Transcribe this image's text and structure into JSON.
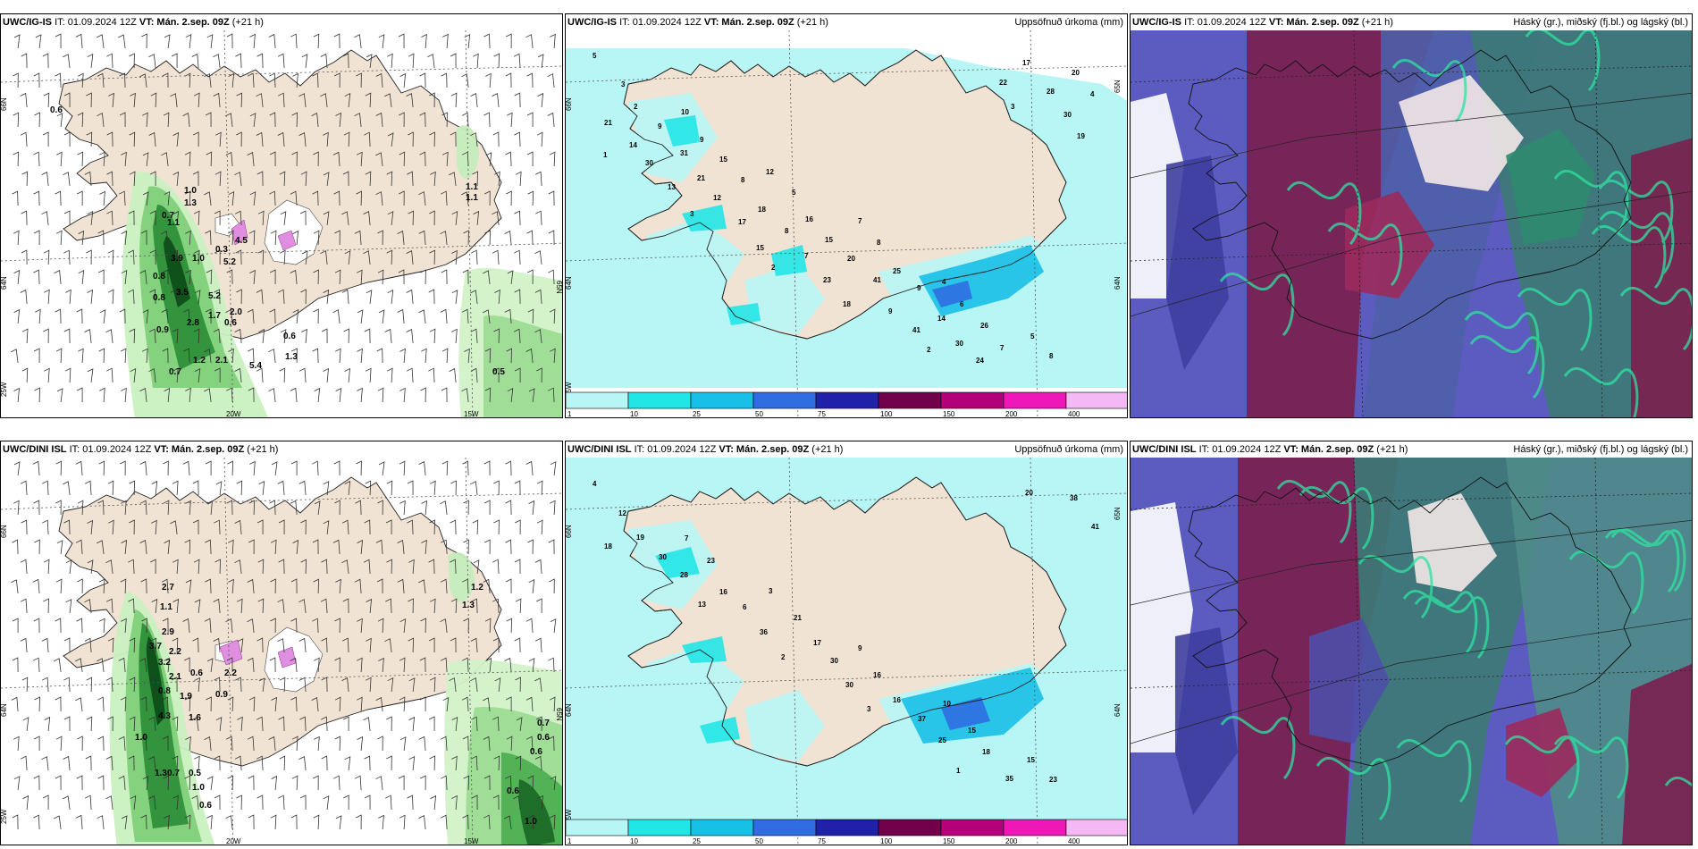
{
  "rows": [
    {
      "model": "UWC/IG-IS",
      "it": "IT: 01.09.2024 12Z",
      "vt_label": "VT:",
      "vt": "Mán. 2.sep. 09Z",
      "lead": "(+21 h)"
    },
    {
      "model": "UWC/DINI ISL",
      "it": "IT: 01.09.2024 12Z",
      "vt_label": "VT:",
      "vt": "Mán. 2.sep. 09Z",
      "lead": "(+21 h)"
    }
  ],
  "panels": {
    "precip_title": "Uppsöfnuð úrkoma (mm)",
    "cloud_title": "Háský (gr.), miðský (fj.bl.) og lágský (bl.)"
  },
  "axis_labels": {
    "lat66": "66N",
    "lat64": "64N",
    "lat25w": "25W",
    "lon20w": "20W",
    "lon15w": "15W",
    "lat65": "65N"
  },
  "colorbar": {
    "ticks": [
      "1",
      "10",
      "25",
      "50",
      "75",
      "100",
      "150",
      "200",
      "400"
    ],
    "colors": [
      "#b8f5f5",
      "#22e5e5",
      "#18c0e8",
      "#2f6de0",
      "#2020a8",
      "#70004a",
      "#b3007a",
      "#ee18b8",
      "#f4b8f4"
    ]
  },
  "wind_precip_labels_top": [
    "0.6",
    "1.0",
    "1.3",
    "0.7",
    "1.1",
    "3.9",
    "1.0",
    "0.3",
    "4.5",
    "5.2",
    "0.8",
    "3.5",
    "5.2",
    "0.8",
    "1.7",
    "2.0",
    "0.9",
    "2.8",
    "0.6",
    "0.6",
    "0.7",
    "1.2",
    "2.1",
    "5.4",
    "1.3",
    "1.1",
    "1.1",
    "0.5"
  ],
  "wind_precip_labels_bottom": [
    "2.7",
    "1.1",
    "2.9",
    "3.7",
    "2.2",
    "3.2",
    "2.1",
    "0.8",
    "1.9",
    "0.6",
    "2.2",
    "0.9",
    "4.3",
    "1.6",
    "1.0",
    "1.3",
    "0.7",
    "0.5",
    "1.0",
    "0.6",
    "1.2",
    "1.3",
    "0.7",
    "0.6",
    "0.6",
    "0.6",
    "1.0"
  ],
  "accum_labels_top": [
    "5",
    "10",
    "12",
    "7",
    "4",
    "5",
    "3",
    "9",
    "5",
    "8",
    "6",
    "8",
    "2",
    "15",
    "16",
    "25",
    "26",
    "20",
    "9",
    "8",
    "15",
    "9",
    "7",
    "4",
    "31",
    "18",
    "20",
    "14",
    "17",
    "21",
    "21",
    "8",
    "41",
    "30",
    "28",
    "14",
    "12",
    "7",
    "9",
    "24",
    "30",
    "30",
    "17",
    "23",
    "41",
    "22",
    "19",
    "13",
    "15",
    "18",
    "2",
    "3",
    "1",
    "3",
    "2"
  ],
  "accum_labels_bottom": [
    "4",
    "7",
    "3",
    "9",
    "10",
    "15",
    "12",
    "23",
    "21",
    "16",
    "15",
    "23",
    "19",
    "16",
    "17",
    "16",
    "18",
    "38",
    "30",
    "6",
    "30",
    "37",
    "35",
    "41",
    "28",
    "36",
    "30",
    "25",
    "20",
    "18",
    "13",
    "2",
    "3",
    "1"
  ]
}
